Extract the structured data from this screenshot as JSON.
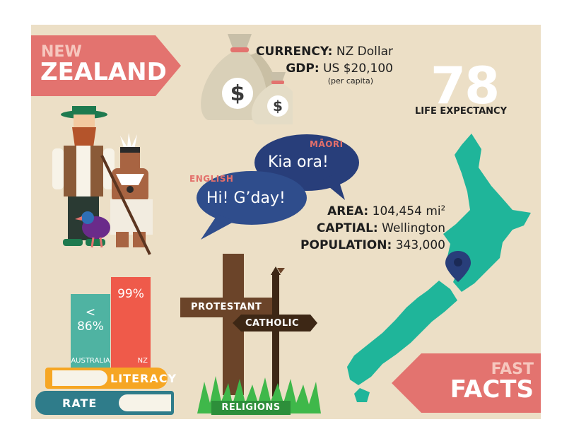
{
  "title": {
    "line1": "NEW",
    "line2": "ZEALAND"
  },
  "currency": {
    "label": "CURRENCY:",
    "value": "NZ Dollar"
  },
  "gdp": {
    "label": "GDP:",
    "value": "US $20,100",
    "note": "(per capita)"
  },
  "life_expectancy": {
    "value": "78",
    "label": "LIFE EXPECTANCY"
  },
  "languages": {
    "maori": {
      "label": "MĀORI",
      "greeting": "Kia ora!"
    },
    "english": {
      "label": "ENGLISH",
      "greeting": "Hi! G’day!"
    }
  },
  "area": {
    "label": "AREA:",
    "value": "104,454 mi",
    "unit_sup": "2"
  },
  "capital": {
    "label": "CAPTIAL:",
    "value": "Wellington"
  },
  "population": {
    "label": "POPULATION:",
    "value": "343,000"
  },
  "literacy": {
    "bars": [
      {
        "name": "AUSTRALIA",
        "value_text": "< 86%",
        "value": 86,
        "color": "#4fb3a2"
      },
      {
        "name": "NZ",
        "value_text": "99%",
        "value": 99,
        "color": "#ef5a4a"
      }
    ],
    "label1": "LITERACY",
    "label2": "RATE"
  },
  "religions": {
    "sign1": "PROTESTANT",
    "sign2": "CATHOLIC",
    "label": "RELIGIONS"
  },
  "fast_facts": {
    "line1": "FAST",
    "line2": "FACTS"
  },
  "colors": {
    "background": "#ecdfc6",
    "banner": "#e3736f",
    "teal": "#1fb59a",
    "navy": "#283e7a",
    "wood": "#6b4429"
  },
  "icons": [
    "money-bag-icon",
    "map-pin-icon",
    "cross-icon",
    "kiwi-bird-icon"
  ]
}
